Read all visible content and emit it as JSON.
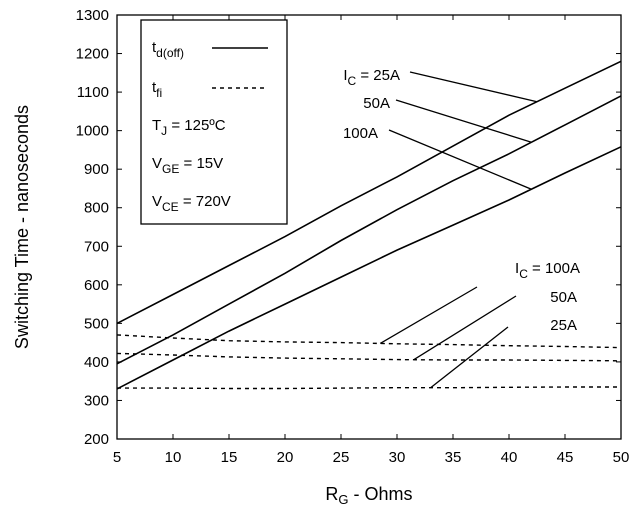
{
  "chart_data": {
    "type": "line",
    "title": "",
    "xlabel": {
      "main": "R",
      "sub": "G",
      "rest": " - Ohms"
    },
    "ylabel": "Switching Time - nanoseconds",
    "xlim": [
      5,
      50
    ],
    "ylim": [
      200,
      1300
    ],
    "xticks": [
      5,
      10,
      15,
      20,
      25,
      30,
      35,
      40,
      45,
      50
    ],
    "yticks": [
      200,
      300,
      400,
      500,
      600,
      700,
      800,
      900,
      1000,
      1100,
      1200,
      1300
    ],
    "grid": false,
    "legend": {
      "placement": "top-left",
      "entries": [
        {
          "symbol": "t",
          "sub": "d(off)",
          "line": "solid"
        },
        {
          "symbol": "t",
          "sub": "fi",
          "line": "dashed"
        }
      ],
      "conditions": [
        {
          "pre": "T",
          "sub": "J",
          "post": " = 125ºC"
        },
        {
          "pre": "V",
          "sub": "GE",
          "post": " = 15V"
        },
        {
          "pre": "V",
          "sub": "CE",
          "post": " = 720V"
        }
      ]
    },
    "series": [
      {
        "group": "td_off",
        "ic": "25A",
        "style": "solid",
        "x": [
          5,
          10,
          15,
          20,
          25,
          30,
          35,
          40,
          45,
          50
        ],
        "y": [
          500,
          575,
          650,
          725,
          805,
          880,
          960,
          1040,
          1110,
          1180
        ]
      },
      {
        "group": "td_off",
        "ic": "50A",
        "style": "solid",
        "x": [
          5,
          10,
          15,
          20,
          25,
          30,
          35,
          40,
          45,
          50
        ],
        "y": [
          395,
          470,
          550,
          630,
          715,
          795,
          870,
          940,
          1015,
          1090
        ]
      },
      {
        "group": "td_off",
        "ic": "100A",
        "style": "solid",
        "x": [
          5,
          10,
          15,
          20,
          25,
          30,
          35,
          40,
          45,
          50
        ],
        "y": [
          330,
          405,
          480,
          550,
          620,
          690,
          755,
          820,
          890,
          958
        ]
      },
      {
        "group": "tfi",
        "ic": "100A",
        "style": "dashed",
        "x": [
          5,
          10,
          15,
          20,
          25,
          30,
          35,
          40,
          45,
          50
        ],
        "y": [
          470,
          462,
          455,
          452,
          450,
          447,
          445,
          442,
          440,
          437
        ]
      },
      {
        "group": "tfi",
        "ic": "50A",
        "style": "dashed",
        "x": [
          5,
          10,
          15,
          20,
          25,
          30,
          35,
          40,
          45,
          50
        ],
        "y": [
          422,
          418,
          413,
          410,
          408,
          406,
          405,
          405,
          404,
          403
        ]
      },
      {
        "group": "tfi",
        "ic": "25A",
        "style": "dashed",
        "x": [
          5,
          10,
          15,
          20,
          25,
          30,
          35,
          40,
          45,
          50
        ],
        "y": [
          332,
          332,
          331,
          331,
          332,
          333,
          333,
          334,
          335,
          335
        ]
      }
    ],
    "annotations_top": [
      {
        "pre": "I",
        "sub": "C",
        "post": " = 25A",
        "target": 0
      },
      {
        "pre": "",
        "sub": "",
        "post": "50A",
        "target": 1
      },
      {
        "pre": "",
        "sub": "",
        "post": "100A",
        "target": 2
      }
    ],
    "annotations_bottom": [
      {
        "pre": "I",
        "sub": "C",
        "post": " = 100A",
        "target": 3
      },
      {
        "pre": "",
        "sub": "",
        "post": "50A",
        "target": 4
      },
      {
        "pre": "",
        "sub": "",
        "post": "25A",
        "target": 5
      }
    ]
  }
}
